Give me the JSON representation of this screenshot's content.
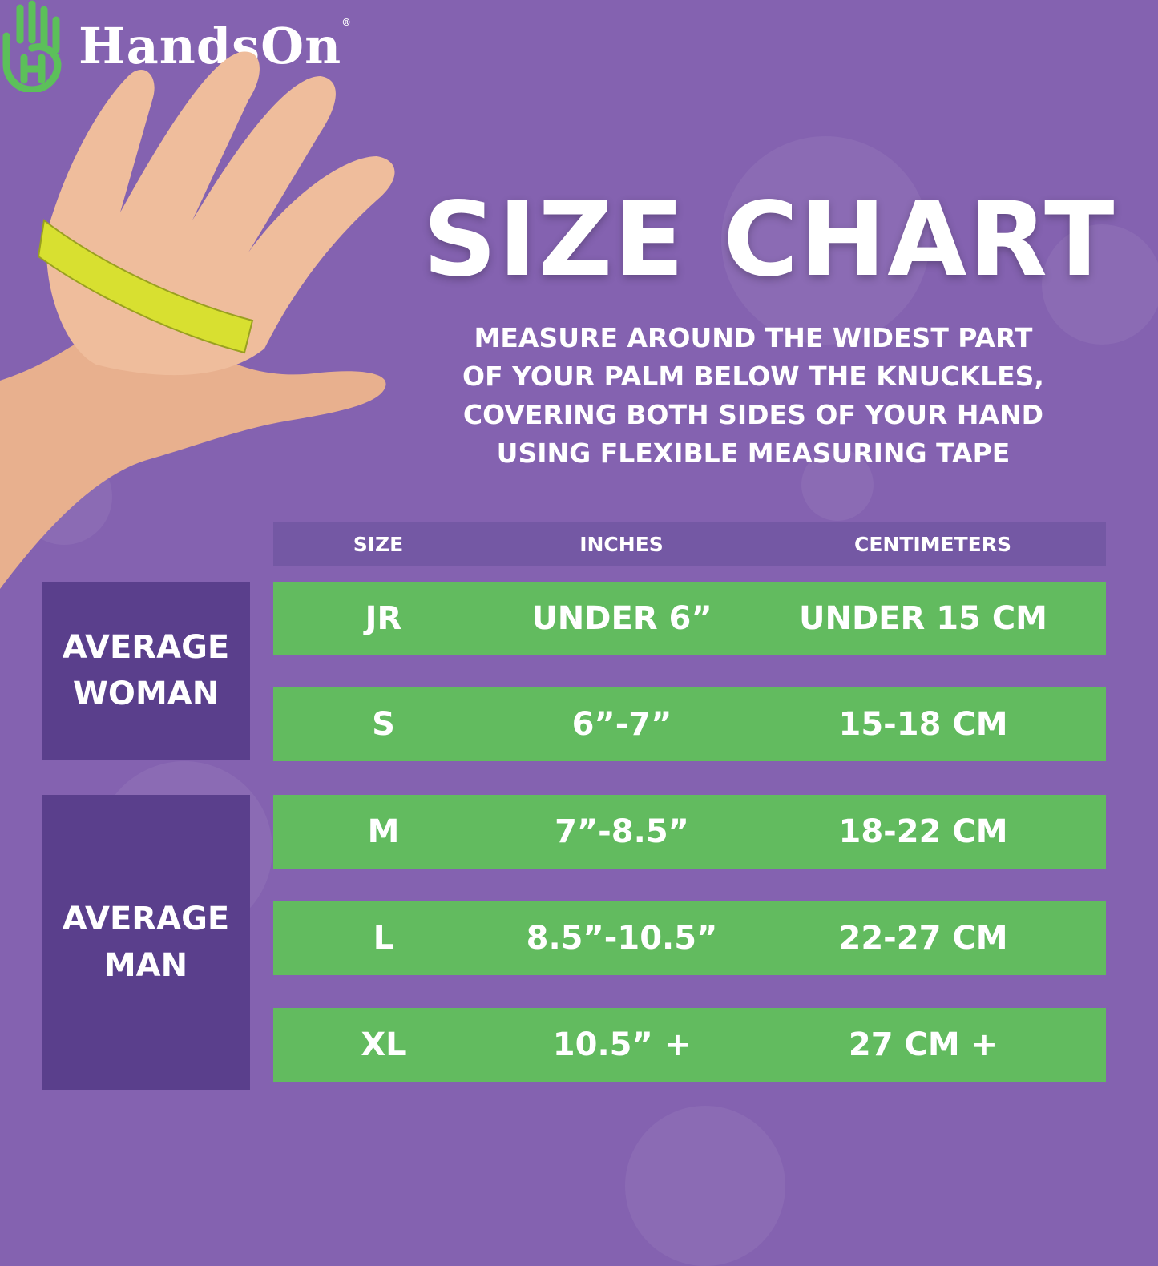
{
  "brand": {
    "name": "HandsOn",
    "registered": "®",
    "logo_color": "#5cc05a"
  },
  "title": "SIZE CHART",
  "instructions": [
    "MEASURE AROUND THE WIDEST PART",
    "OF YOUR PALM BELOW THE KNUCKLES,",
    "COVERING BOTH SIDES OF YOUR HAND",
    "USING FLEXIBLE MEASURING TAPE"
  ],
  "table": {
    "headers": [
      "SIZE",
      "INCHES",
      "CENTIMETERS"
    ],
    "rows": [
      {
        "size": "JR",
        "inches": "UNDER 6”",
        "cm": "UNDER 15 CM"
      },
      {
        "size": "S",
        "inches": "6”-7”",
        "cm": "15-18 CM"
      },
      {
        "size": "M",
        "inches": "7”-8.5”",
        "cm": "18-22 CM"
      },
      {
        "size": "L",
        "inches": "8.5”-10.5”",
        "cm": "22-27 CM"
      },
      {
        "size": "XL",
        "inches": "10.5” +",
        "cm": "27 CM +"
      }
    ]
  },
  "groups": [
    {
      "line1": "AVERAGE",
      "line2": "WOMAN"
    },
    {
      "line1": "AVERAGE",
      "line2": "MAN"
    }
  ],
  "colors": {
    "background": "#8462b0",
    "header": "#7458a4",
    "row": "#62bb5f",
    "group": "#5a3f8c",
    "tape": "#d8e030"
  }
}
